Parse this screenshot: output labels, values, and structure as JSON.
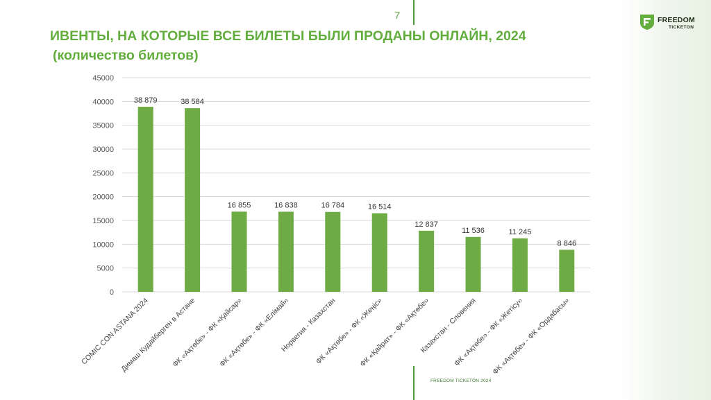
{
  "page": {
    "number": "7"
  },
  "header": {
    "title": "ИВЕНТЫ, НА КОТОРЫЕ ВСЕ БИЛЕТЫ БЫЛИ ПРОДАНЫ ОНЛАЙН, 2024",
    "subtitle": "(количество билетов)"
  },
  "brand": {
    "line1": "FREEDOM",
    "line2": "TICKETON",
    "color": "#1f2f1a",
    "accent": "#62ad3e",
    "icon": "freedom-logo-icon"
  },
  "footer": {
    "label": "FREEDOM TICKETON 2024"
  },
  "chart_data": {
    "type": "bar",
    "categories": [
      "COMIC CON ASTANA 2024",
      "Димаш Кудайберген в Астане",
      "ФК «Ақтөбе» - ФК «Қайсар»",
      "ФК «Ақтөбе» - ФК «Елімай»",
      "Норвегия - Казахстан",
      "ФК «Ақтөбе» - ФК «Жеңіс»",
      "ФК «Қайрат» - ФК «Ақтөбе»",
      "Казахстан - Словения",
      "ФК «Ақтөбе» - ФК «Жетісу»",
      "ФК «Ақтөбе» - ФК «Ордабасы»"
    ],
    "values": [
      38879,
      38584,
      16855,
      16838,
      16784,
      16514,
      12837,
      11536,
      11245,
      8846
    ],
    "data_labels": [
      "38 879",
      "38 584",
      "16 855",
      "16 838",
      "16 784",
      "16 514",
      "12 837",
      "11 536",
      "11 245",
      "8 846"
    ],
    "ylim": [
      0,
      45000
    ],
    "yticks": [
      "0",
      "5000",
      "10000",
      "15000",
      "20000",
      "25000",
      "30000",
      "35000",
      "40000",
      "45000"
    ],
    "ytick_values": [
      0,
      5000,
      10000,
      15000,
      20000,
      25000,
      30000,
      35000,
      40000,
      45000
    ],
    "grid": true,
    "bar_color": "#6eab45",
    "grid_color": "#d9d9d9"
  }
}
